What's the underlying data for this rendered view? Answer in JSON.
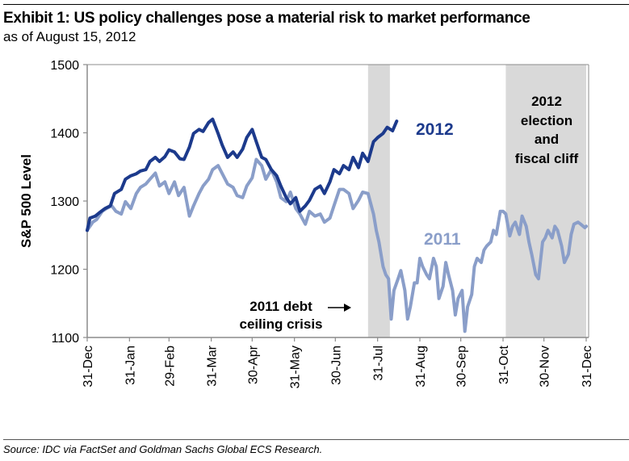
{
  "header": {
    "title": "Exhibit 1: US policy  challenges pose a material risk to market performance",
    "subtitle": "as of August 15, 2012"
  },
  "footer": {
    "source": "Source: IDC via FactSet and Goldman Sachs Global ECS Research."
  },
  "colors": {
    "series_2012": "#1c3a8c",
    "series_2011": "#8a9ec9",
    "shade": "#d9d9d9",
    "axis": "#8c8c8c"
  },
  "chart_data": {
    "type": "line",
    "title": "Exhibit 1: US policy  challenges pose a material risk to market performance",
    "subtitle": "as of August 15, 2012",
    "xlabel": "",
    "ylabel": "S&P 500 Level",
    "ylim": [
      1100,
      1500
    ],
    "yticks": [
      1100,
      1200,
      1300,
      1400,
      1500
    ],
    "xlim_days": [
      0,
      366
    ],
    "xticks": [
      {
        "label": "31-Dec",
        "day": 0
      },
      {
        "label": "31-Jan",
        "day": 31
      },
      {
        "label": "29-Feb",
        "day": 60
      },
      {
        "label": "31-Mar",
        "day": 91
      },
      {
        "label": "30-Apr",
        "day": 121
      },
      {
        "label": "31-May",
        "day": 152
      },
      {
        "label": "30-Jun",
        "day": 182
      },
      {
        "label": "31-Jul",
        "day": 213
      },
      {
        "label": "31-Aug",
        "day": 244
      },
      {
        "label": "30-Sep",
        "day": 274
      },
      {
        "label": "31-Oct",
        "day": 305
      },
      {
        "label": "30-Nov",
        "day": 335
      },
      {
        "label": "31-Dec",
        "day": 366
      }
    ],
    "grid": false,
    "shaded_regions": [
      {
        "name": "2011 debt ceiling crisis",
        "start_day": 206,
        "end_day": 222
      },
      {
        "name": "2012 election and fiscal cliff",
        "start_day": 307,
        "end_day": 366
      }
    ],
    "annotations": [
      {
        "text_lines": [
          "2011 debt",
          "ceiling crisis"
        ],
        "arrow": "right"
      },
      {
        "text_lines": [
          "2012",
          "election",
          "and",
          "fiscal cliff"
        ]
      }
    ],
    "series": [
      {
        "name": "2012",
        "label": "2012",
        "days": [
          0,
          2,
          6,
          9,
          13,
          17,
          20,
          25,
          28,
          32,
          36,
          39,
          43,
          46,
          50,
          53,
          57,
          60,
          64,
          68,
          71,
          75,
          78,
          82,
          85,
          89,
          92,
          96,
          99,
          103,
          107,
          110,
          114,
          117,
          121,
          124,
          128,
          131,
          135,
          139,
          142,
          146,
          149,
          153,
          156,
          160,
          163,
          167,
          171,
          174,
          178,
          181,
          185,
          188,
          192,
          195,
          199,
          202,
          206,
          210,
          213,
          217,
          220,
          224,
          227
        ],
        "values": [
          1257,
          1275,
          1278,
          1283,
          1289,
          1293,
          1311,
          1317,
          1332,
          1337,
          1340,
          1344,
          1346,
          1358,
          1364,
          1358,
          1365,
          1375,
          1372,
          1362,
          1361,
          1379,
          1399,
          1405,
          1402,
          1415,
          1420,
          1399,
          1382,
          1364,
          1372,
          1364,
          1376,
          1393,
          1405,
          1387,
          1364,
          1361,
          1346,
          1337,
          1322,
          1305,
          1296,
          1305,
          1285,
          1293,
          1301,
          1317,
          1322,
          1311,
          1328,
          1346,
          1340,
          1352,
          1346,
          1364,
          1349,
          1370,
          1358,
          1387,
          1393,
          1399,
          1408,
          1403,
          1417
        ]
      },
      {
        "name": "2011",
        "label": "2011",
        "days": [
          0,
          4,
          7,
          11,
          14,
          18,
          21,
          25,
          28,
          32,
          36,
          39,
          43,
          46,
          50,
          53,
          57,
          60,
          64,
          67,
          71,
          75,
          78,
          82,
          85,
          89,
          92,
          96,
          103,
          107,
          110,
          114,
          117,
          121,
          124,
          128,
          131,
          135,
          139,
          142,
          146,
          149,
          153,
          156,
          160,
          163,
          167,
          171,
          174,
          178,
          181,
          185,
          188,
          192,
          195,
          199,
          202,
          206,
          210,
          212,
          214,
          217,
          219,
          221,
          223,
          225,
          228,
          230,
          233,
          235,
          237,
          240,
          242,
          244,
          246,
          249,
          251,
          254,
          256,
          258,
          261,
          263,
          265,
          268,
          270,
          272,
          275,
          277,
          279,
          282,
          284,
          286,
          289,
          291,
          293,
          296,
          298,
          300,
          303,
          305,
          307,
          310,
          312,
          314,
          317,
          319,
          322,
          324,
          326,
          329,
          331,
          334,
          336,
          338,
          341,
          343,
          345,
          348,
          350,
          353,
          355,
          357,
          360,
          362,
          365,
          366
        ],
        "values": [
          1257,
          1269,
          1273,
          1285,
          1289,
          1293,
          1285,
          1281,
          1299,
          1289,
          1311,
          1320,
          1325,
          1332,
          1341,
          1322,
          1328,
          1311,
          1328,
          1308,
          1320,
          1278,
          1293,
          1311,
          1322,
          1332,
          1346,
          1352,
          1325,
          1320,
          1308,
          1305,
          1322,
          1334,
          1361,
          1352,
          1332,
          1346,
          1328,
          1305,
          1299,
          1313,
          1289,
          1281,
          1266,
          1285,
          1278,
          1281,
          1269,
          1275,
          1293,
          1317,
          1317,
          1311,
          1289,
          1301,
          1313,
          1311,
          1281,
          1257,
          1240,
          1204,
          1192,
          1186,
          1127,
          1169,
          1186,
          1198,
          1169,
          1127,
          1145,
          1180,
          1180,
          1216,
          1204,
          1192,
          1186,
          1216,
          1204,
          1157,
          1175,
          1210,
          1192,
          1169,
          1133,
          1157,
          1169,
          1109,
          1145,
          1163,
          1204,
          1216,
          1210,
          1228,
          1234,
          1240,
          1257,
          1251,
          1285,
          1285,
          1281,
          1249,
          1263,
          1269,
          1251,
          1278,
          1263,
          1240,
          1222,
          1192,
          1186,
          1240,
          1246,
          1257,
          1246,
          1263,
          1257,
          1234,
          1210,
          1222,
          1251,
          1266,
          1269,
          1266,
          1261,
          1263
        ]
      }
    ]
  }
}
